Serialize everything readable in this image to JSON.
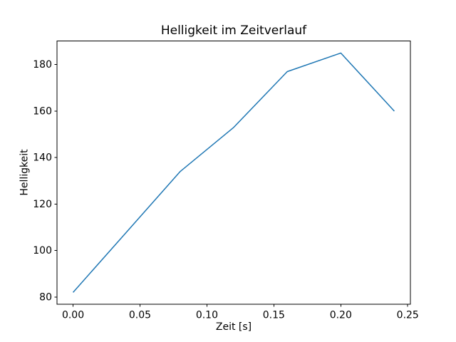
{
  "chart_data": {
    "type": "line",
    "title": "Helligkeit im Zeitverlauf",
    "xlabel": "Zeit [s]",
    "ylabel": "Helligkeit",
    "x": [
      0.0,
      0.04,
      0.08,
      0.12,
      0.16,
      0.2,
      0.24
    ],
    "y": [
      82,
      108,
      134,
      153,
      177,
      185,
      160
    ],
    "series_name": "Helligkeit",
    "xlim": [
      -0.012,
      0.252
    ],
    "ylim": [
      76.85,
      190.15
    ],
    "xticks": [
      0.0,
      0.05,
      0.1,
      0.15,
      0.2,
      0.25
    ],
    "xtick_labels": [
      "0.00",
      "0.05",
      "0.10",
      "0.15",
      "0.20",
      "0.25"
    ],
    "yticks": [
      80,
      100,
      120,
      140,
      160,
      180
    ],
    "ytick_labels": [
      "80",
      "100",
      "120",
      "140",
      "160",
      "180"
    ],
    "grid": false,
    "legend_position": "none",
    "line_color": "#1f77b4",
    "axes_color": "#000000",
    "background_color": "#ffffff"
  }
}
